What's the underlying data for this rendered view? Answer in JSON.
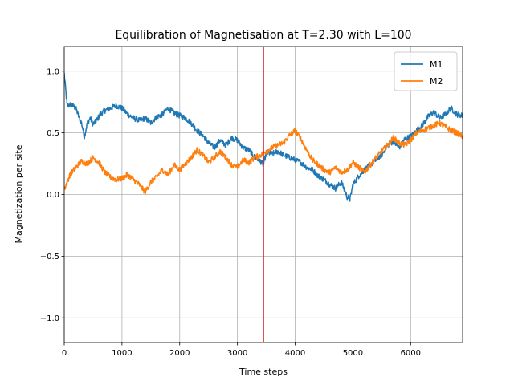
{
  "chart_data": {
    "type": "line",
    "title": "Equilibration of Magnetisation at T=2.30 with L=100",
    "xlabel": "Time steps",
    "ylabel": "Magnetization per site",
    "xlim": [
      0,
      6900
    ],
    "ylim": [
      -1.2,
      1.2
    ],
    "xticks": [
      0,
      1000,
      2000,
      3000,
      4000,
      5000,
      6000
    ],
    "xtick_labels": [
      "0",
      "1000",
      "2000",
      "3000",
      "4000",
      "5000",
      "6000"
    ],
    "yticks": [
      -1.0,
      -0.5,
      0.0,
      0.5,
      1.0
    ],
    "ytick_labels": [
      "−1.0",
      "−0.5",
      "0.0",
      "0.5",
      "1.0"
    ],
    "grid": true,
    "legend_position": "top-right",
    "vline": {
      "x": 3450,
      "color": "#d62728"
    },
    "series": [
      {
        "name": "M1",
        "color": "#1f77b4",
        "x": [
          0,
          50,
          120,
          200,
          260,
          300,
          350,
          400,
          450,
          500,
          560,
          620,
          700,
          800,
          900,
          1000,
          1100,
          1200,
          1300,
          1400,
          1500,
          1600,
          1700,
          1800,
          1900,
          2000,
          2100,
          2200,
          2300,
          2400,
          2500,
          2600,
          2700,
          2800,
          2900,
          3000,
          3100,
          3200,
          3300,
          3400,
          3450,
          3500,
          3600,
          3700,
          3800,
          3900,
          4000,
          4100,
          4200,
          4300,
          4400,
          4500,
          4600,
          4700,
          4800,
          4900,
          4950,
          5000,
          5100,
          5200,
          5300,
          5400,
          5500,
          5600,
          5700,
          5800,
          5900,
          6000,
          6100,
          6200,
          6300,
          6400,
          6500,
          6600,
          6700,
          6800,
          6900
        ],
        "y": [
          0.98,
          0.72,
          0.73,
          0.7,
          0.62,
          0.58,
          0.47,
          0.58,
          0.62,
          0.57,
          0.6,
          0.65,
          0.68,
          0.7,
          0.72,
          0.7,
          0.65,
          0.62,
          0.6,
          0.62,
          0.58,
          0.63,
          0.65,
          0.7,
          0.66,
          0.64,
          0.62,
          0.58,
          0.52,
          0.48,
          0.42,
          0.38,
          0.44,
          0.4,
          0.46,
          0.44,
          0.38,
          0.36,
          0.3,
          0.27,
          0.24,
          0.34,
          0.33,
          0.35,
          0.32,
          0.3,
          0.28,
          0.26,
          0.22,
          0.2,
          0.15,
          0.12,
          0.08,
          0.05,
          0.1,
          -0.02,
          -0.04,
          0.08,
          0.15,
          0.2,
          0.24,
          0.28,
          0.32,
          0.4,
          0.43,
          0.38,
          0.45,
          0.47,
          0.52,
          0.56,
          0.63,
          0.67,
          0.62,
          0.65,
          0.7,
          0.65,
          0.64
        ]
      },
      {
        "name": " M2",
        "color": "#ff7f0e",
        "x": [
          0,
          50,
          100,
          200,
          300,
          400,
          500,
          600,
          700,
          800,
          900,
          1000,
          1100,
          1200,
          1300,
          1400,
          1500,
          1600,
          1700,
          1800,
          1900,
          2000,
          2100,
          2200,
          2300,
          2400,
          2500,
          2600,
          2700,
          2800,
          2900,
          3000,
          3100,
          3200,
          3300,
          3400,
          3500,
          3600,
          3700,
          3800,
          3900,
          4000,
          4100,
          4200,
          4300,
          4400,
          4500,
          4600,
          4700,
          4800,
          4900,
          5000,
          5100,
          5200,
          5300,
          5400,
          5500,
          5600,
          5700,
          5800,
          5900,
          6000,
          6100,
          6200,
          6300,
          6400,
          6500,
          6600,
          6700,
          6800,
          6900
        ],
        "y": [
          0.04,
          0.1,
          0.16,
          0.22,
          0.27,
          0.25,
          0.3,
          0.26,
          0.18,
          0.14,
          0.12,
          0.13,
          0.16,
          0.12,
          0.08,
          0.02,
          0.1,
          0.14,
          0.2,
          0.16,
          0.24,
          0.2,
          0.25,
          0.3,
          0.36,
          0.32,
          0.26,
          0.3,
          0.35,
          0.3,
          0.24,
          0.22,
          0.28,
          0.26,
          0.3,
          0.32,
          0.35,
          0.38,
          0.4,
          0.42,
          0.48,
          0.52,
          0.45,
          0.36,
          0.28,
          0.24,
          0.2,
          0.18,
          0.22,
          0.18,
          0.2,
          0.26,
          0.22,
          0.18,
          0.24,
          0.3,
          0.35,
          0.4,
          0.46,
          0.42,
          0.4,
          0.44,
          0.5,
          0.52,
          0.54,
          0.56,
          0.58,
          0.55,
          0.52,
          0.5,
          0.47
        ]
      }
    ]
  }
}
